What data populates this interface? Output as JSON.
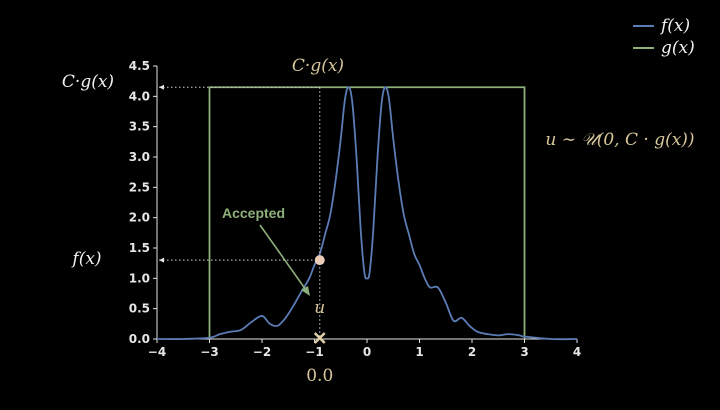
{
  "chart_data": {
    "type": "line",
    "title": "",
    "xlabel": "",
    "ylabel": "",
    "xlim": [
      -4,
      4
    ],
    "ylim": [
      0,
      4.5
    ],
    "xticks": [
      "−4",
      "−3",
      "−2",
      "−1",
      "0",
      "1",
      "2",
      "3",
      "4"
    ],
    "yticks": [
      "0.0",
      "0.5",
      "1.0",
      "1.5",
      "2.0",
      "2.5",
      "3.0",
      "3.5",
      "4.0",
      "4.5"
    ],
    "grid": false,
    "legend_position": "top-right",
    "series": [
      {
        "name": "f(x)",
        "color": "#5b7cb5",
        "x": [
          -4.0,
          -3.5,
          -3.0,
          -2.8,
          -2.6,
          -2.4,
          -2.2,
          -2.0,
          -1.85,
          -1.7,
          -1.55,
          -1.4,
          -1.25,
          -1.1,
          -1.0,
          -0.9,
          -0.8,
          -0.7,
          -0.6,
          -0.5,
          -0.42,
          -0.35,
          -0.28,
          -0.2,
          -0.12,
          -0.05,
          0.0,
          0.05,
          0.12,
          0.2,
          0.28,
          0.35,
          0.42,
          0.5,
          0.6,
          0.7,
          0.8,
          0.9,
          1.0,
          1.1,
          1.2,
          1.35,
          1.5,
          1.65,
          1.8,
          1.95,
          2.1,
          2.3,
          2.5,
          2.7,
          2.9,
          3.0,
          3.5,
          4.0
        ],
        "y": [
          0.0,
          0.0,
          0.02,
          0.08,
          0.12,
          0.15,
          0.28,
          0.38,
          0.25,
          0.22,
          0.35,
          0.55,
          0.78,
          1.0,
          1.22,
          1.4,
          1.72,
          2.05,
          2.6,
          3.3,
          3.95,
          4.15,
          3.9,
          3.0,
          1.8,
          1.1,
          1.0,
          1.1,
          1.8,
          3.0,
          3.9,
          4.15,
          3.95,
          3.3,
          2.6,
          2.05,
          1.72,
          1.4,
          1.22,
          1.0,
          0.85,
          0.85,
          0.6,
          0.3,
          0.35,
          0.22,
          0.12,
          0.08,
          0.06,
          0.08,
          0.06,
          0.04,
          0.0,
          0.0
        ]
      },
      {
        "name": "g(x)",
        "color": "#8db07a",
        "x": [
          -3,
          -3,
          3,
          3
        ],
        "y": [
          0,
          4.15,
          4.15,
          0
        ]
      }
    ],
    "annotations": {
      "cg_top_label": "C·g(x)",
      "cg_left_label": "C·g(x)",
      "fx_left_label": "f(x)",
      "u_label": "u",
      "uniform_label": "u ∼ 𝒰(0, C · g(x))",
      "accepted_label": "Accepted",
      "sample_x": -0.9,
      "sample_x_label": "0.0",
      "sample_f": 1.3,
      "sample_cg": 4.15,
      "sample_u": 0.0
    },
    "legend": [
      "f(x)",
      "g(x)"
    ]
  }
}
